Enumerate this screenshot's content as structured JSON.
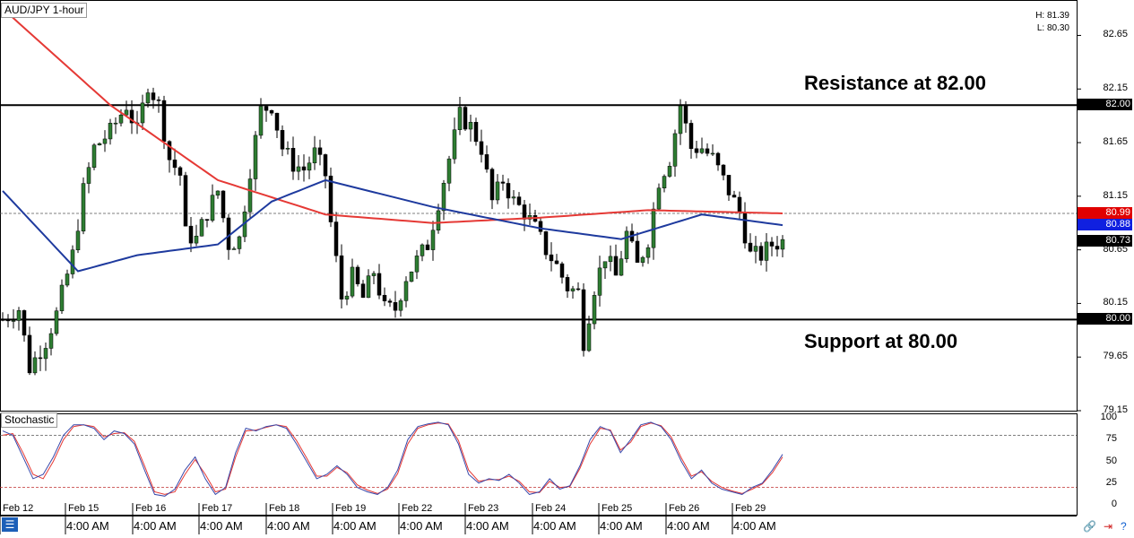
{
  "title": "AUD/JPY 1-hour",
  "high_label": "H: 81.39",
  "low_label": "L: 80.30",
  "annotations": {
    "resistance": "Resistance at 82.00",
    "support": "Support at 80.00"
  },
  "stochastic_label": "Stochastic",
  "colors": {
    "up_candle": "#2e7d32",
    "down_candle": "#000000",
    "ma_slow": "#e53935",
    "ma_fast": "#1e3a9e",
    "stoch_k": "#3949ab",
    "stoch_d": "#e53935"
  },
  "price_tags": [
    {
      "text": "82.00",
      "value": 82.0,
      "color": "#000000"
    },
    {
      "text": "80.99",
      "value": 80.99,
      "color": "#e00000"
    },
    {
      "text": "80.88",
      "value": 80.88,
      "color": "#1020e0"
    },
    {
      "text": "80.73",
      "value": 80.73,
      "color": "#000000"
    },
    {
      "text": "80.00",
      "value": 80.0,
      "color": "#000000"
    }
  ],
  "chart_data": [
    {
      "type": "candlestick",
      "title": "AUD/JPY 1-hour",
      "ylim": [
        79.15,
        82.98
      ],
      "y_ticks": [
        82.65,
        82.15,
        81.65,
        81.15,
        80.65,
        80.15,
        79.65,
        79.15
      ],
      "x_dates": [
        "Feb 12",
        "Feb 15",
        "Feb 16",
        "Feb 17",
        "Feb 18",
        "Feb 19",
        "Feb 22",
        "Feb 23",
        "Feb 24",
        "Feb 25",
        "Feb 26",
        "Feb 29"
      ],
      "x_times": [
        "4:00 AM",
        "4:00 AM",
        "4:00 AM",
        "4:00 AM",
        "4:00 AM",
        "4:00 AM",
        "4:00 AM",
        "4:00 AM",
        "4:00 AM",
        "4:00 AM",
        "4:00 AM",
        "4:00 AM"
      ],
      "horizontal_lines": [
        {
          "label": "Resistance at 82.00",
          "value": 82.0
        },
        {
          "label": "Support at 80.00",
          "value": 80.0
        }
      ],
      "last_price": 80.73,
      "close_path": [
        [
          0,
          80.0
        ],
        [
          3,
          80.1
        ],
        [
          5,
          79.55
        ],
        [
          8,
          79.8
        ],
        [
          10,
          80.05
        ],
        [
          13,
          80.6
        ],
        [
          15,
          81.2
        ],
        [
          17,
          81.6
        ],
        [
          20,
          81.75
        ],
        [
          23,
          82.0
        ],
        [
          25,
          81.75
        ],
        [
          27,
          82.2
        ],
        [
          29,
          82.0
        ],
        [
          31,
          81.5
        ],
        [
          33,
          81.35
        ],
        [
          34,
          80.8
        ],
        [
          36,
          80.75
        ],
        [
          38,
          81.0
        ],
        [
          40,
          81.2
        ],
        [
          42,
          80.7
        ],
        [
          44,
          80.75
        ],
        [
          46,
          81.4
        ],
        [
          48,
          81.95
        ],
        [
          50,
          82.0
        ],
        [
          52,
          81.6
        ],
        [
          54,
          81.45
        ],
        [
          56,
          81.4
        ],
        [
          58,
          81.55
        ],
        [
          60,
          81.35
        ],
        [
          61,
          80.9
        ],
        [
          63,
          80.2
        ],
        [
          65,
          80.4
        ],
        [
          67,
          80.2
        ],
        [
          69,
          80.45
        ],
        [
          71,
          80.1
        ],
        [
          73,
          80.1
        ],
        [
          75,
          80.4
        ],
        [
          77,
          80.55
        ],
        [
          79,
          80.7
        ],
        [
          81,
          81.1
        ],
        [
          83,
          81.5
        ],
        [
          85,
          81.9
        ],
        [
          87,
          81.8
        ],
        [
          89,
          81.6
        ],
        [
          91,
          81.1
        ],
        [
          93,
          81.3
        ],
        [
          95,
          81.1
        ],
        [
          97,
          81.0
        ],
        [
          99,
          80.85
        ],
        [
          101,
          80.65
        ],
        [
          103,
          80.5
        ],
        [
          105,
          80.3
        ],
        [
          107,
          80.25
        ],
        [
          108,
          79.8
        ],
        [
          110,
          80.3
        ],
        [
          112,
          80.6
        ],
        [
          114,
          80.4
        ],
        [
          116,
          80.8
        ],
        [
          118,
          80.5
        ],
        [
          120,
          80.75
        ],
        [
          122,
          81.3
        ],
        [
          124,
          81.5
        ],
        [
          126,
          82.0
        ],
        [
          128,
          81.6
        ],
        [
          130,
          81.6
        ],
        [
          132,
          81.5
        ],
        [
          134,
          81.3
        ],
        [
          135,
          81.2
        ],
        [
          137,
          81.0
        ],
        [
          139,
          80.6
        ],
        [
          141,
          80.6
        ],
        [
          143,
          80.7
        ],
        [
          145,
          80.73
        ]
      ],
      "series": [
        {
          "name": "",
          "values_path": [
            [
              0,
              82.9
            ],
            [
              20,
              82.0
            ],
            [
              40,
              81.3
            ],
            [
              60,
              80.98
            ],
            [
              80,
              80.9
            ],
            [
              100,
              80.95
            ],
            [
              120,
              81.02
            ],
            [
              145,
              80.99
            ]
          ]
        },
        {
          "name": "",
          "values_path": [
            [
              0,
              81.2
            ],
            [
              14,
              80.45
            ],
            [
              25,
              80.6
            ],
            [
              40,
              80.7
            ],
            [
              50,
              81.1
            ],
            [
              60,
              81.3
            ],
            [
              80,
              81.05
            ],
            [
              100,
              80.85
            ],
            [
              115,
              80.75
            ],
            [
              130,
              80.98
            ],
            [
              145,
              80.88
            ]
          ]
        }
      ]
    },
    {
      "type": "line",
      "title": "Stochastic",
      "ylim": [
        0,
        100
      ],
      "y_ticks": [
        100,
        75,
        50,
        25,
        0
      ],
      "levels": [
        80,
        20
      ],
      "k_values": [
        85,
        80,
        55,
        30,
        35,
        55,
        80,
        92,
        92,
        88,
        75,
        85,
        82,
        70,
        40,
        12,
        10,
        18,
        40,
        55,
        30,
        12,
        20,
        60,
        88,
        85,
        90,
        92,
        88,
        70,
        50,
        30,
        35,
        45,
        35,
        20,
        15,
        12,
        20,
        40,
        75,
        90,
        93,
        95,
        92,
        70,
        35,
        25,
        30,
        28,
        35,
        25,
        12,
        15,
        30,
        18,
        22,
        45,
        75,
        90,
        85,
        60,
        75,
        92,
        95,
        90,
        75,
        50,
        30,
        40,
        25,
        18,
        15,
        12,
        20,
        25,
        40,
        58
      ],
      "d_values": [
        80,
        82,
        60,
        35,
        30,
        50,
        75,
        90,
        92,
        90,
        78,
        82,
        83,
        73,
        45,
        15,
        12,
        15,
        35,
        52,
        35,
        15,
        18,
        55,
        85,
        86,
        89,
        92,
        90,
        74,
        54,
        33,
        33,
        43,
        37,
        23,
        17,
        13,
        18,
        36,
        70,
        88,
        92,
        94,
        93,
        74,
        40,
        27,
        29,
        29,
        33,
        27,
        15,
        14,
        27,
        20,
        21,
        42,
        70,
        88,
        86,
        63,
        72,
        90,
        94,
        91,
        78,
        54,
        33,
        38,
        27,
        20,
        16,
        13,
        18,
        24,
        37,
        55
      ]
    }
  ]
}
